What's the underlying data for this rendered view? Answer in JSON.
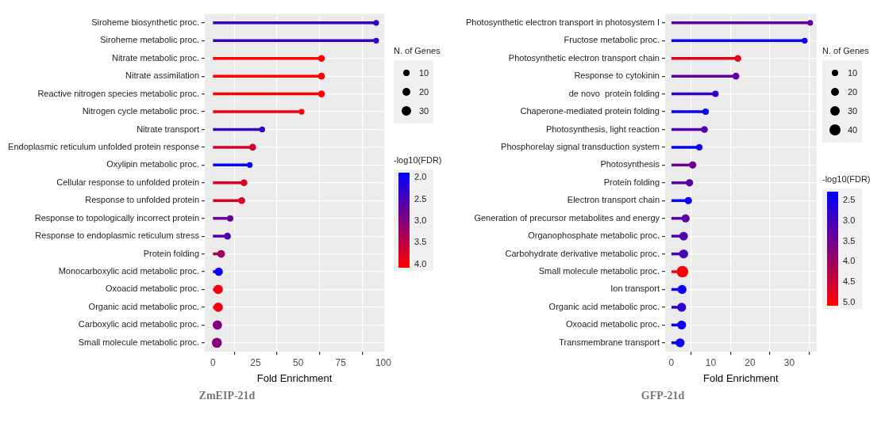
{
  "chart_data": [
    {
      "type": "lollipop",
      "orientation": "horizontal",
      "title": "ZmEIP-21d",
      "xlabel": "Fold Enrichment",
      "legend_title": "N. of Genes",
      "clabel": "-log10(FDR)",
      "grid": true,
      "categories": [
        "Siroheme biosynthetic proc.",
        "Siroheme metabolic proc.",
        "Nitrate metabolic proc.",
        "Nitrate assimilation",
        "Reactive nitrogen species metabolic proc.",
        "Nitrogen cycle metabolic proc.",
        "Nitrate transport",
        "Endoplasmic reticulum unfolded protein response",
        "Oxylipin metabolic proc.",
        "Cellular response to unfolded protein",
        "Response to unfolded protein",
        "Response to topologically incorrect protein",
        "Response to endoplasmic reticulum stress",
        "Protein folding",
        "Monocarboxylic acid metabolic proc.",
        "Oxoacid metabolic proc.",
        "Organic acid metabolic proc.",
        "Carboxylic acid metabolic proc.",
        "Small molecule metabolic proc."
      ],
      "values": [
        95.8,
        95.8,
        63.7,
        63.7,
        63.7,
        52,
        28.9,
        23.3,
        21.6,
        18.2,
        16.9,
        10.1,
        8.5,
        4.8,
        3.4,
        3.1,
        3.1,
        2.6,
        2.3
      ],
      "sizes": [
        10,
        10,
        14,
        14,
        14,
        10,
        10,
        14,
        10,
        14,
        14,
        12,
        14,
        18,
        20,
        26,
        26,
        26,
        30
      ],
      "cvalues": [
        2.4,
        2.4,
        4.1,
        4.1,
        4.1,
        4.0,
        2.4,
        3.7,
        1.9,
        3.8,
        3.8,
        2.8,
        2.6,
        3.3,
        2.0,
        4.0,
        4.0,
        3.0,
        3.1
      ],
      "size_legend": [
        10,
        20,
        30
      ],
      "clim": [
        1.9,
        4.1
      ],
      "cticks": [
        {
          "value": 2,
          "label": "2.0"
        },
        2.5,
        {
          "value": 3,
          "label": "3.0"
        },
        3.5,
        {
          "value": 4,
          "label": "4.0"
        }
      ],
      "xlim": [
        -4.8,
        100.6
      ],
      "xticks": [
        0,
        25,
        50,
        75,
        100
      ]
    },
    {
      "type": "lollipop",
      "orientation": "horizontal",
      "title": "GFP-21d",
      "xlabel": "Fold Enrichment",
      "legend_title": "N. of Genes",
      "clabel": "-log10(FDR)",
      "grid": true,
      "categories": [
        "Photosynthetic electron transport in photosystem I",
        "Fructose metabolic proc.",
        "Photosynthetic electron transport chain",
        "Response to cytokinin",
        "de novo  protein folding",
        "Chaperone-mediated protein folding",
        "Photosynthesis, light reaction",
        "Phosphorelay signal transduction system",
        "Photosynthesis",
        "Protein folding",
        "Electron transport chain",
        "Generation of precursor metabolites and energy",
        "Organophosphate metabolic proc.",
        "Carbohydrate derivative metabolic proc.",
        "Small molecule metabolic proc.",
        "Ion transport",
        "Organic acid metabolic proc.",
        "Oxoacid metabolic proc.",
        "Transmembrane transport"
      ],
      "values": [
        35.3,
        33.9,
        16.9,
        16.4,
        11.2,
        8.7,
        8.4,
        7.1,
        5.4,
        4.6,
        4.3,
        3.6,
        3.1,
        3.1,
        2.8,
        2.7,
        2.6,
        2.6,
        2.2
      ],
      "sizes": [
        10,
        10,
        14,
        14,
        12,
        12,
        14,
        12,
        16,
        16,
        16,
        20,
        22,
        24,
        40,
        24,
        24,
        24,
        24
      ],
      "cvalues": [
        3.4,
        2.4,
        4.8,
        3.3,
        2.9,
        2.4,
        3.2,
        2.4,
        3.5,
        3.3,
        2.4,
        3.3,
        3.2,
        3.1,
        5.0,
        2.4,
        2.8,
        2.5,
        2.4
      ],
      "size_legend": [
        10,
        20,
        30,
        40
      ],
      "clim": [
        2.3,
        5.1
      ],
      "cticks": [
        2.5,
        {
          "value": 3,
          "label": "3.0"
        },
        3.5,
        {
          "value": 4,
          "label": "4.0"
        },
        4.5,
        {
          "value": 5,
          "label": "5.0"
        }
      ],
      "xlim": [
        -1.6,
        36.9
      ],
      "xticks": [
        0,
        10,
        20,
        30
      ]
    }
  ]
}
